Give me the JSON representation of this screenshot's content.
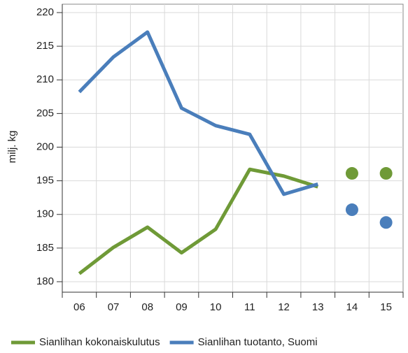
{
  "chart_data": {
    "type": "line",
    "y_label": "milj. kg",
    "categories": [
      "06",
      "07",
      "08",
      "09",
      "10",
      "11",
      "12",
      "13",
      "14",
      "15"
    ],
    "series": [
      {
        "name": "Sianlihan kokonaiskulutus",
        "color": "#6f9a37",
        "values": [
          181.2,
          185.1,
          188.1,
          184.3,
          187.8,
          196.7,
          195.7,
          194.1,
          null,
          null
        ],
        "forecast_values": [
          null,
          null,
          null,
          null,
          null,
          null,
          null,
          null,
          196.1,
          196.1
        ]
      },
      {
        "name": "Sianlihan tuotanto, Suomi",
        "color": "#4a7ebb",
        "values": [
          208.2,
          213.4,
          217.1,
          205.8,
          203.2,
          201.9,
          193.0,
          194.5,
          null,
          null
        ],
        "forecast_values": [
          null,
          null,
          null,
          null,
          null,
          null,
          null,
          null,
          190.7,
          188.8
        ]
      }
    ],
    "ylim": [
      180,
      220
    ],
    "yticks": [
      180,
      185,
      190,
      195,
      200,
      205,
      210,
      215,
      220
    ],
    "grid": true
  }
}
